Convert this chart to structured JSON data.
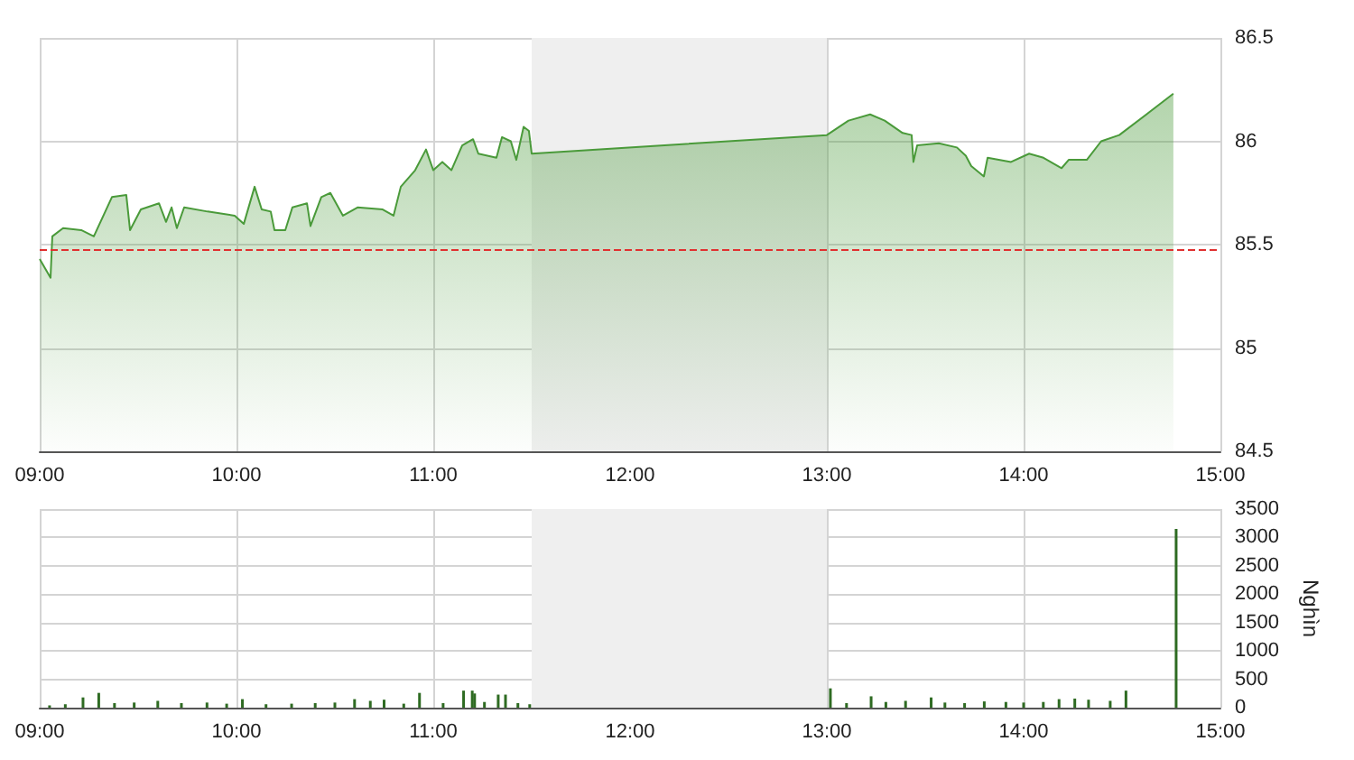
{
  "chart_data": [
    {
      "type": "area",
      "color": "#4a9a3a",
      "x": [
        9,
        9.055,
        9.064,
        9.119,
        9.211,
        9.275,
        9.367,
        9.44,
        9.459,
        9.514,
        9.606,
        9.642,
        9.67,
        9.697,
        9.734,
        9.853,
        9.991,
        10.037,
        10.092,
        10.128,
        10.174,
        10.193,
        10.248,
        10.284,
        10.358,
        10.376,
        10.431,
        10.477,
        10.541,
        10.615,
        10.743,
        10.798,
        10.835,
        10.908,
        10.963,
        11,
        11.046,
        11.092,
        11.147,
        11.202,
        11.229,
        11.321,
        11.349,
        11.394,
        11.422,
        11.459,
        11.486,
        11.5,
        13,
        13.11,
        13.22,
        13.294,
        13.385,
        13.431,
        13.44,
        13.459,
        13.569,
        13.661,
        13.706,
        13.734,
        13.798,
        13.817,
        13.936,
        14.028,
        14.101,
        14.193,
        14.229,
        14.321,
        14.394,
        14.486,
        14.761
      ],
      "values": [
        85.43,
        85.34,
        85.54,
        85.58,
        85.57,
        85.54,
        85.73,
        85.74,
        85.57,
        85.67,
        85.7,
        85.61,
        85.68,
        85.58,
        85.68,
        85.66,
        85.64,
        85.6,
        85.78,
        85.67,
        85.66,
        85.57,
        85.57,
        85.68,
        85.7,
        85.59,
        85.73,
        85.75,
        85.64,
        85.68,
        85.67,
        85.64,
        85.78,
        85.86,
        85.96,
        85.86,
        85.9,
        85.86,
        85.98,
        86.01,
        85.94,
        85.92,
        86.02,
        86,
        85.91,
        86.07,
        86.05,
        85.94,
        86.03,
        86.1,
        86.13,
        86.1,
        86.04,
        86.03,
        85.9,
        85.98,
        85.99,
        85.97,
        85.93,
        85.88,
        85.83,
        85.92,
        85.9,
        85.94,
        85.92,
        85.87,
        85.91,
        85.91,
        86,
        86.03,
        86.23
      ],
      "xlim": [
        9,
        15
      ],
      "xticks": [
        {
          "value": 9,
          "label": "09:00"
        },
        {
          "value": 10,
          "label": "10:00"
        },
        {
          "value": 11,
          "label": "11:00"
        },
        {
          "value": 12,
          "label": "12:00"
        },
        {
          "value": 13,
          "label": "13:00"
        },
        {
          "value": 14,
          "label": "14:00"
        },
        {
          "value": 15,
          "label": "15:00"
        }
      ],
      "ylim": [
        84.5,
        86.5
      ],
      "yticks": [
        84.5,
        85,
        85.5,
        86,
        86.5
      ],
      "ref_lines": [
        {
          "axis": "y",
          "value": 85.48,
          "color": "#e03030",
          "line_style": "dashed"
        }
      ],
      "bands": [
        {
          "axis": "x",
          "from": 11.5,
          "to": 13,
          "color": "#efefef"
        }
      ],
      "grid": true,
      "marker": "none"
    },
    {
      "type": "bar",
      "color": "#2e6b22",
      "ylabel": "Nghìn",
      "x": [
        9.05,
        9.13,
        9.22,
        9.3,
        9.38,
        9.48,
        9.6,
        9.72,
        9.85,
        9.95,
        10.03,
        10.15,
        10.28,
        10.4,
        10.5,
        10.6,
        10.68,
        10.75,
        10.85,
        10.93,
        11.05,
        11.154,
        11.198,
        11.21,
        11.26,
        11.33,
        11.367,
        11.43,
        11.49,
        13.018,
        13.1,
        13.225,
        13.3,
        13.4,
        13.53,
        13.6,
        13.7,
        13.8,
        13.91,
        14,
        14.1,
        14.18,
        14.26,
        14.33,
        14.44,
        14.52,
        14.775
      ],
      "values": [
        40,
        60,
        180,
        260,
        80,
        90,
        120,
        80,
        90,
        70,
        150,
        60,
        70,
        80,
        90,
        150,
        120,
        140,
        70,
        260,
        80,
        300,
        300,
        250,
        100,
        230,
        230,
        80,
        60,
        340,
        80,
        200,
        100,
        120,
        180,
        90,
        80,
        110,
        100,
        90,
        100,
        150,
        160,
        140,
        120,
        300,
        3150
      ],
      "xlim": [
        9,
        15
      ],
      "xticks": [
        {
          "value": 9,
          "label": "09:00"
        },
        {
          "value": 10,
          "label": "10:00"
        },
        {
          "value": 11,
          "label": "11:00"
        },
        {
          "value": 12,
          "label": "12:00"
        },
        {
          "value": 13,
          "label": "13:00"
        },
        {
          "value": 14,
          "label": "14:00"
        },
        {
          "value": 15,
          "label": "15:00"
        }
      ],
      "ylim": [
        0,
        3500
      ],
      "yticks": [
        0,
        500,
        1000,
        1500,
        2000,
        2500,
        3000,
        3500
      ],
      "bands": [
        {
          "axis": "x",
          "from": 11.5,
          "to": 13,
          "color": "#efefef"
        }
      ],
      "grid": true
    }
  ]
}
